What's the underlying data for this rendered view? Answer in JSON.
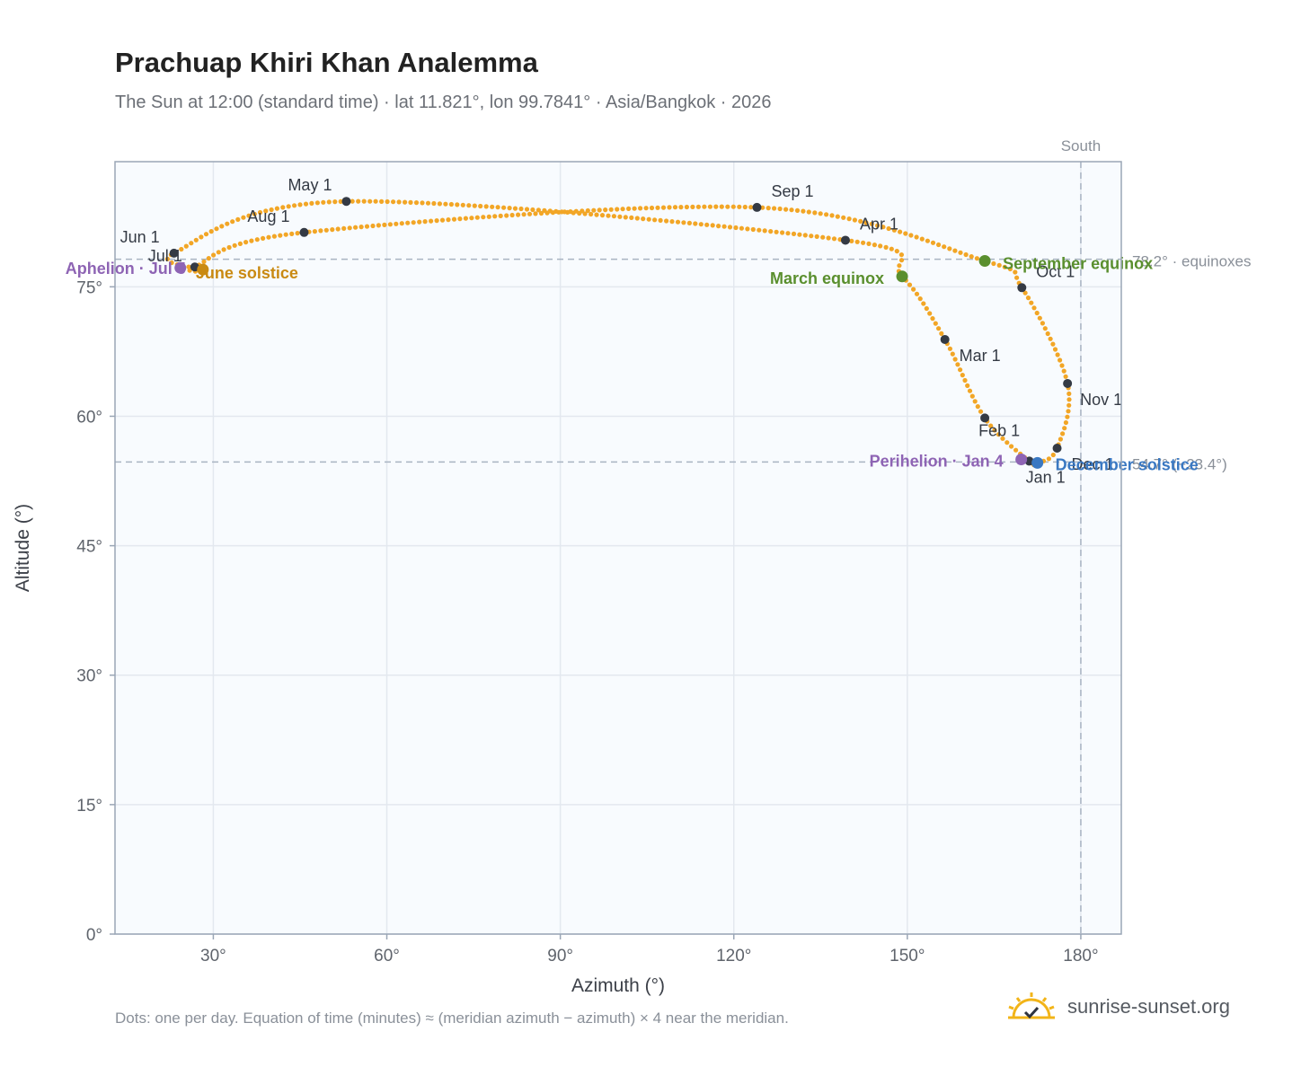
{
  "title": "Prachuap Khiri Khan Analemma",
  "subtitle": "The Sun at 12:00 (standard time) · lat 11.821°, lon 99.7841° · Asia/Bangkok · 2026",
  "footnote": "Dots: one per day. Equation of time (minutes) ≈ (meridian azimuth − azimuth) × 4 near the meridian.",
  "brand": {
    "name": "sunrise-sunset.org",
    "icon": "sun-check-icon"
  },
  "colors": {
    "curve": "#f2a626",
    "month_dot": "#343a44",
    "equinox": "#5a8f2e",
    "december_solstice": "#3a78c2",
    "june_solstice": "#c98a12",
    "apsis": "#8e64b4",
    "plot_bg": "#f8fbfe",
    "grid": "#e3e8ef",
    "ref_line": "#a9b4c2"
  },
  "chart_data": {
    "type": "scatter",
    "xlabel": "Azimuth (°)",
    "ylabel": "Altitude (°)",
    "xlim": [
      13,
      187
    ],
    "ylim": [
      0,
      89.5
    ],
    "xticks": [
      30,
      60,
      90,
      120,
      150,
      180
    ],
    "yticks": [
      0,
      15,
      30,
      45,
      60,
      75
    ],
    "xtick_labels": [
      "30°",
      "60°",
      "90°",
      "120°",
      "150°",
      "180°"
    ],
    "ytick_labels": [
      "0°",
      "15°",
      "30°",
      "45°",
      "60°",
      "75°"
    ],
    "grid": true,
    "south_line": {
      "azimuth": 180,
      "label": "South"
    },
    "reference_lines": [
      {
        "altitude": 78.2,
        "label": "78.2° · equinoxes"
      },
      {
        "altitude": 54.7,
        "label": "54.7° (−23.4°)"
      }
    ],
    "path": [
      {
        "date": "Jan 1",
        "az": 171.1,
        "alt": 54.8
      },
      {
        "date": "Feb 1",
        "az": 163.4,
        "alt": 59.8
      },
      {
        "date": "Mar 1",
        "az": 156.5,
        "alt": 68.9
      },
      {
        "date": "Mar 20",
        "az": 149.1,
        "alt": 76.2
      },
      {
        "date": "Apr 1",
        "az": 139.3,
        "alt": 80.4
      },
      {
        "date": "May 1",
        "az": 53.0,
        "alt": 84.9
      },
      {
        "date": "Jun 1",
        "az": 23.2,
        "alt": 78.9
      },
      {
        "date": "Jun 21",
        "az": 28.2,
        "alt": 77.0
      },
      {
        "date": "Jul 1",
        "az": 26.8,
        "alt": 77.3
      },
      {
        "date": "Aug 1",
        "az": 45.7,
        "alt": 81.3
      },
      {
        "date": "Sep 1",
        "az": 124.0,
        "alt": 84.2
      },
      {
        "date": "Sep 23",
        "az": 163.4,
        "alt": 78.0
      },
      {
        "date": "Oct 1",
        "az": 169.8,
        "alt": 74.9
      },
      {
        "date": "Nov 1",
        "az": 177.7,
        "alt": 63.8
      },
      {
        "date": "Dec 1",
        "az": 175.9,
        "alt": 56.3
      },
      {
        "date": "Dec 21",
        "az": 172.5,
        "alt": 54.6
      }
    ],
    "month_markers": [
      {
        "label": "Jan 1",
        "az": 171.1,
        "alt": 54.8
      },
      {
        "label": "Feb 1",
        "az": 163.4,
        "alt": 59.8
      },
      {
        "label": "Mar 1",
        "az": 156.5,
        "alt": 68.9
      },
      {
        "label": "Apr 1",
        "az": 139.3,
        "alt": 80.4
      },
      {
        "label": "May 1",
        "az": 53.0,
        "alt": 84.9
      },
      {
        "label": "Jun 1",
        "az": 23.2,
        "alt": 78.9
      },
      {
        "label": "Jul 1",
        "az": 26.8,
        "alt": 77.3
      },
      {
        "label": "Aug 1",
        "az": 45.7,
        "alt": 81.3
      },
      {
        "label": "Sep 1",
        "az": 124.0,
        "alt": 84.2
      },
      {
        "label": "Oct 1",
        "az": 169.8,
        "alt": 74.9
      },
      {
        "label": "Nov 1",
        "az": 177.7,
        "alt": 63.8
      },
      {
        "label": "Dec 1",
        "az": 175.9,
        "alt": 56.3
      }
    ],
    "events": [
      {
        "label": "March equinox",
        "az": 149.1,
        "alt": 76.2,
        "kind": "equinox"
      },
      {
        "label": "September equinox",
        "az": 163.4,
        "alt": 78.0,
        "kind": "equinox"
      },
      {
        "label": "June solstice",
        "az": 28.2,
        "alt": 77.0,
        "kind": "june_solstice"
      },
      {
        "label": "December solstice",
        "az": 172.5,
        "alt": 54.6,
        "kind": "december_solstice"
      },
      {
        "label": "Perihelion · Jan 4",
        "az": 169.7,
        "alt": 55.0,
        "kind": "apsis"
      },
      {
        "label": "Aphelion · Jul 5",
        "az": 24.3,
        "alt": 77.2,
        "kind": "apsis"
      }
    ]
  }
}
